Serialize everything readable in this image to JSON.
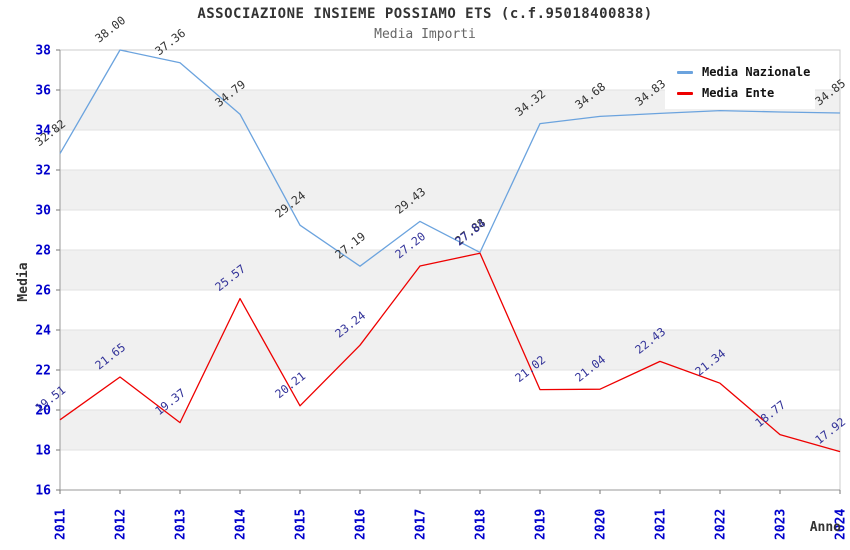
{
  "header": {
    "title": "ASSOCIAZIONE INSIEME POSSIAMO ETS (c.f.95018400838)",
    "subtitle": "Media Importi"
  },
  "legend": {
    "items": [
      {
        "label": "Media Nazionale",
        "color": "#6BA3DE"
      },
      {
        "label": "Media Ente",
        "color": "#EE0000"
      }
    ]
  },
  "axes": {
    "y_title": "Media",
    "x_title": "Anno",
    "y_tick_labels": [
      "16",
      "18",
      "20",
      "22",
      "24",
      "26",
      "28",
      "30",
      "32",
      "34",
      "36",
      "38"
    ],
    "x_tick_labels": [
      "2011",
      "2012",
      "2013",
      "2014",
      "2015",
      "2016",
      "2017",
      "2018",
      "2019",
      "2020",
      "2021",
      "2022",
      "2023",
      "2024"
    ]
  },
  "chart_data": {
    "type": "line",
    "title": "ASSOCIAZIONE INSIEME POSSIAMO ETS (c.f.95018400838)",
    "subtitle": "Media Importi",
    "xlabel": "Anno",
    "ylabel": "Media",
    "x": [
      "2011",
      "2012",
      "2013",
      "2014",
      "2015",
      "2016",
      "2017",
      "2018",
      "2019",
      "2020",
      "2021",
      "2022",
      "2023",
      "2024"
    ],
    "ylim": [
      16,
      38
    ],
    "y_tick_step": 2,
    "grid": "horizontal-banded",
    "legend_position": "top-right-inside",
    "point_labels": "values shown rotated at each point, 2 decimals; Media Nazionale labels for 2022-2023 hidden behind legend (values estimated from line)",
    "series": [
      {
        "name": "Media Nazionale",
        "color": "#6BA3DE",
        "label_color": "#333333",
        "values": [
          32.82,
          38.0,
          37.36,
          34.79,
          29.24,
          27.19,
          29.43,
          27.88,
          34.32,
          34.68,
          34.83,
          34.97,
          34.9,
          34.85
        ]
      },
      {
        "name": "Media Ente",
        "color": "#EE0000",
        "label_color": "#333399",
        "values": [
          19.51,
          21.65,
          19.37,
          25.57,
          20.21,
          23.24,
          27.2,
          27.84,
          21.02,
          21.04,
          22.43,
          21.34,
          18.77,
          17.92
        ]
      }
    ]
  },
  "colors": {
    "background": "#FFFFFF",
    "band": "#F0F0F0",
    "gridline": "#E2E2E2",
    "plot_border": "#CCCCCC",
    "axis_line": "#999999",
    "tick_mark": "#777777",
    "tick_label": "#0000CC",
    "axis_title": "#333333",
    "title": "#333333",
    "subtitle": "#666666"
  }
}
